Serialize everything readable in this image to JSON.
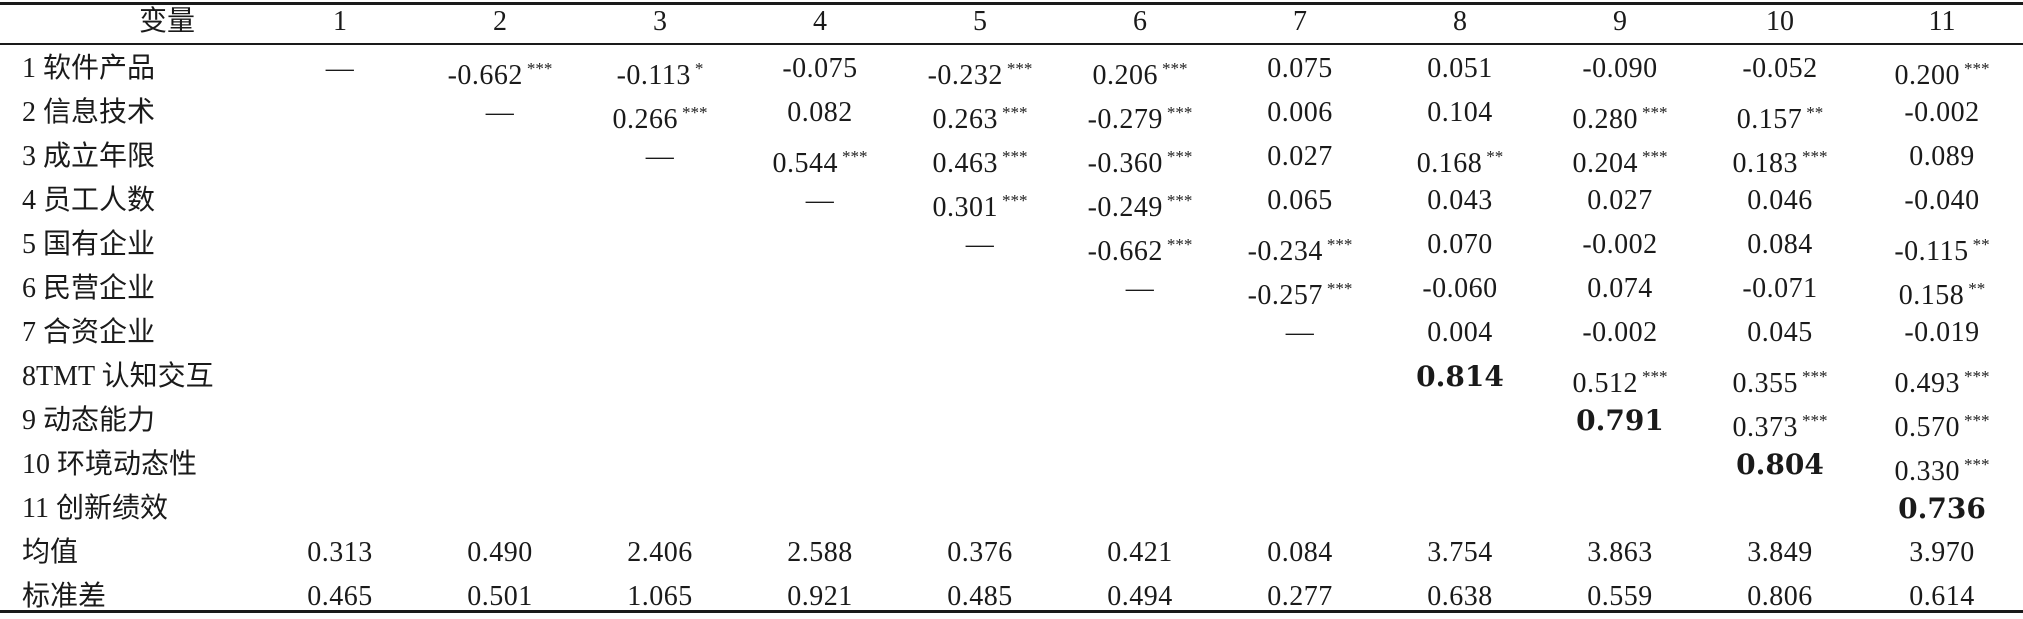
{
  "table": {
    "header": [
      "变量",
      "1",
      "2",
      "3",
      "4",
      "5",
      "6",
      "7",
      "8",
      "9",
      "10",
      "11"
    ],
    "rows": [
      {
        "label": "1 软件产品",
        "cells": [
          {
            "v": "—"
          },
          {
            "v": "-0.662",
            "s": "***"
          },
          {
            "v": "-0.113",
            "s": "*"
          },
          {
            "v": "-0.075"
          },
          {
            "v": "-0.232",
            "s": "***"
          },
          {
            "v": "0.206",
            "s": "***"
          },
          {
            "v": "0.075"
          },
          {
            "v": "0.051"
          },
          {
            "v": "-0.090"
          },
          {
            "v": "-0.052"
          },
          {
            "v": "0.200",
            "s": "***"
          }
        ]
      },
      {
        "label": "2 信息技术",
        "cells": [
          {
            "v": ""
          },
          {
            "v": "—"
          },
          {
            "v": "0.266",
            "s": "***"
          },
          {
            "v": "0.082"
          },
          {
            "v": "0.263",
            "s": "***"
          },
          {
            "v": "-0.279",
            "s": "***"
          },
          {
            "v": "0.006"
          },
          {
            "v": "0.104"
          },
          {
            "v": "0.280",
            "s": "***"
          },
          {
            "v": "0.157",
            "s": "**"
          },
          {
            "v": "-0.002"
          }
        ]
      },
      {
        "label": "3 成立年限",
        "cells": [
          {
            "v": ""
          },
          {
            "v": ""
          },
          {
            "v": "—"
          },
          {
            "v": "0.544",
            "s": "***"
          },
          {
            "v": "0.463",
            "s": "***"
          },
          {
            "v": "-0.360",
            "s": "***"
          },
          {
            "v": "0.027"
          },
          {
            "v": "0.168",
            "s": "**"
          },
          {
            "v": "0.204",
            "s": "***"
          },
          {
            "v": "0.183",
            "s": "***"
          },
          {
            "v": "0.089"
          }
        ]
      },
      {
        "label": "4 员工人数",
        "cells": [
          {
            "v": ""
          },
          {
            "v": ""
          },
          {
            "v": ""
          },
          {
            "v": "—"
          },
          {
            "v": "0.301",
            "s": "***"
          },
          {
            "v": "-0.249",
            "s": "***"
          },
          {
            "v": "0.065"
          },
          {
            "v": "0.043"
          },
          {
            "v": "0.027"
          },
          {
            "v": "0.046"
          },
          {
            "v": "-0.040"
          }
        ]
      },
      {
        "label": "5 国有企业",
        "cells": [
          {
            "v": ""
          },
          {
            "v": ""
          },
          {
            "v": ""
          },
          {
            "v": ""
          },
          {
            "v": "—"
          },
          {
            "v": "-0.662",
            "s": "***"
          },
          {
            "v": "-0.234",
            "s": "***"
          },
          {
            "v": "0.070"
          },
          {
            "v": "-0.002"
          },
          {
            "v": "0.084"
          },
          {
            "v": "-0.115",
            "s": "**"
          }
        ]
      },
      {
        "label": "6 民营企业",
        "cells": [
          {
            "v": ""
          },
          {
            "v": ""
          },
          {
            "v": ""
          },
          {
            "v": ""
          },
          {
            "v": ""
          },
          {
            "v": "—"
          },
          {
            "v": "-0.257",
            "s": "***"
          },
          {
            "v": "-0.060"
          },
          {
            "v": "0.074"
          },
          {
            "v": "-0.071"
          },
          {
            "v": "0.158",
            "s": "**"
          }
        ]
      },
      {
        "label": "7 合资企业",
        "cells": [
          {
            "v": ""
          },
          {
            "v": ""
          },
          {
            "v": ""
          },
          {
            "v": ""
          },
          {
            "v": ""
          },
          {
            "v": ""
          },
          {
            "v": "—"
          },
          {
            "v": "0.004"
          },
          {
            "v": "-0.002"
          },
          {
            "v": "0.045"
          },
          {
            "v": "-0.019"
          }
        ]
      },
      {
        "label": "8TMT 认知交互",
        "cells": [
          {
            "v": ""
          },
          {
            "v": ""
          },
          {
            "v": ""
          },
          {
            "v": ""
          },
          {
            "v": ""
          },
          {
            "v": ""
          },
          {
            "v": ""
          },
          {
            "v": "0.814",
            "b": true
          },
          {
            "v": "0.512",
            "s": "***"
          },
          {
            "v": "0.355",
            "s": "***"
          },
          {
            "v": "0.493",
            "s": "***"
          }
        ]
      },
      {
        "label": "9 动态能力",
        "cells": [
          {
            "v": ""
          },
          {
            "v": ""
          },
          {
            "v": ""
          },
          {
            "v": ""
          },
          {
            "v": ""
          },
          {
            "v": ""
          },
          {
            "v": ""
          },
          {
            "v": ""
          },
          {
            "v": "0.791",
            "b": true
          },
          {
            "v": "0.373",
            "s": "***"
          },
          {
            "v": "0.570",
            "s": "***"
          }
        ]
      },
      {
        "label": "10 环境动态性",
        "cells": [
          {
            "v": ""
          },
          {
            "v": ""
          },
          {
            "v": ""
          },
          {
            "v": ""
          },
          {
            "v": ""
          },
          {
            "v": ""
          },
          {
            "v": ""
          },
          {
            "v": ""
          },
          {
            "v": ""
          },
          {
            "v": "0.804",
            "b": true
          },
          {
            "v": "0.330",
            "s": "***"
          }
        ]
      },
      {
        "label": "11 创新绩效",
        "cells": [
          {
            "v": ""
          },
          {
            "v": ""
          },
          {
            "v": ""
          },
          {
            "v": ""
          },
          {
            "v": ""
          },
          {
            "v": ""
          },
          {
            "v": ""
          },
          {
            "v": ""
          },
          {
            "v": ""
          },
          {
            "v": ""
          },
          {
            "v": "0.736",
            "b": true
          }
        ]
      },
      {
        "label": "均值",
        "cells": [
          {
            "v": "0.313"
          },
          {
            "v": "0.490"
          },
          {
            "v": "2.406"
          },
          {
            "v": "2.588"
          },
          {
            "v": "0.376"
          },
          {
            "v": "0.421"
          },
          {
            "v": "0.084"
          },
          {
            "v": "3.754"
          },
          {
            "v": "3.863"
          },
          {
            "v": "3.849"
          },
          {
            "v": "3.970"
          }
        ]
      },
      {
        "label": "标准差",
        "cells": [
          {
            "v": "0.465"
          },
          {
            "v": "0.501"
          },
          {
            "v": "1.065"
          },
          {
            "v": "0.921"
          },
          {
            "v": "0.485"
          },
          {
            "v": "0.494"
          },
          {
            "v": "0.277"
          },
          {
            "v": "0.638"
          },
          {
            "v": "0.559"
          },
          {
            "v": "0.806"
          },
          {
            "v": "0.614"
          }
        ]
      }
    ]
  }
}
